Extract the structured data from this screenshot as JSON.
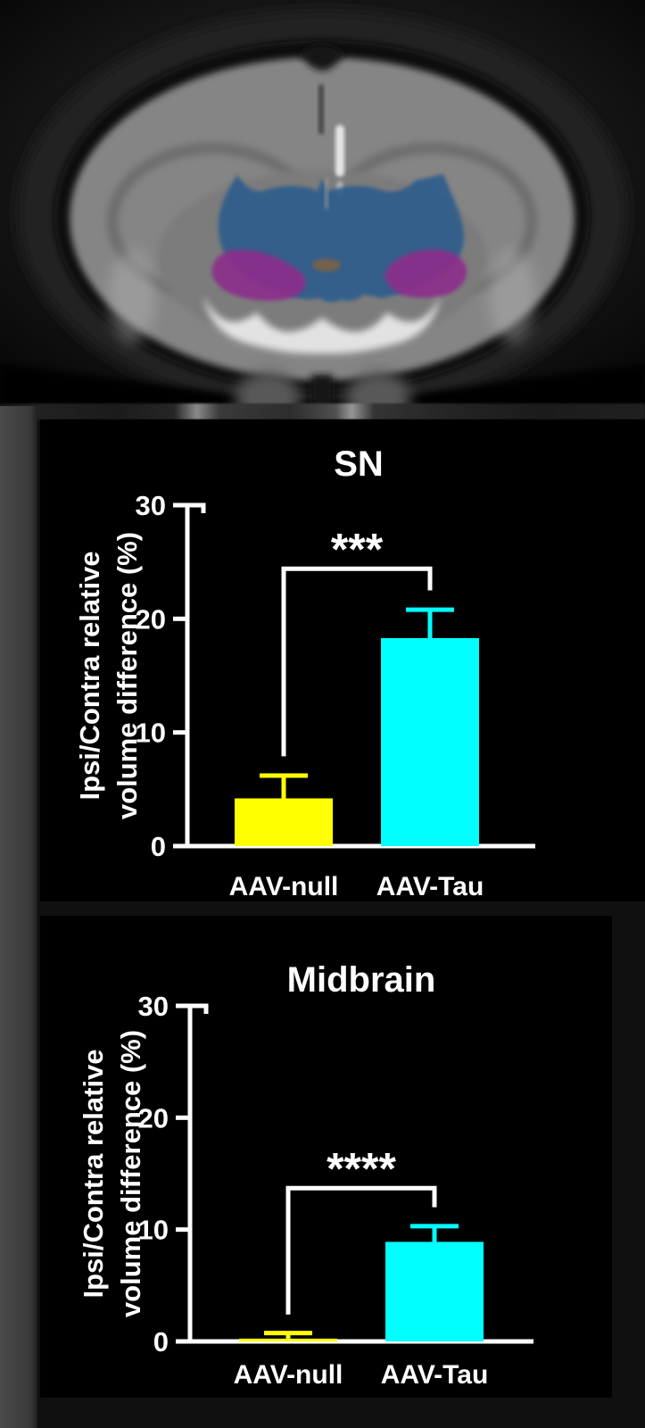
{
  "page": {
    "background": "#101010"
  },
  "mri": {
    "overlays": [
      {
        "name": "midbrain",
        "color": "#2F5D8C"
      },
      {
        "name": "substantia-nigra-left",
        "color": "#8C2F8C"
      },
      {
        "name": "substantia-nigra-right",
        "color": "#8C2F8C"
      },
      {
        "name": "central-structure-spot",
        "color": "#7D6244"
      }
    ]
  },
  "chart_data": [
    {
      "type": "bar",
      "title": "SN",
      "categories": [
        "AAV-null",
        "AAV-Tau"
      ],
      "values": [
        4.2,
        18.3
      ],
      "errors": [
        2.0,
        2.5
      ],
      "bar_colors": [
        "#FFFF00",
        "#00FFFF"
      ],
      "axis_color": "#FFFFFF",
      "ylabel_lines": [
        "Ipsi/Contra relative",
        "volume difference (%)"
      ],
      "ylim": [
        0,
        30
      ],
      "yticks": [
        0,
        10,
        20,
        30
      ],
      "grid": false,
      "legend": "none",
      "significance": {
        "label": "***",
        "bracket_y": 24.4,
        "left_drop_to": 7.9,
        "right_drop_to": 22.5
      }
    },
    {
      "type": "bar",
      "title": "Midbrain",
      "categories": [
        "AAV-null",
        "AAV-Tau"
      ],
      "values": [
        0.25,
        8.9
      ],
      "errors": [
        0.5,
        1.4
      ],
      "bar_colors": [
        "#FFFF00",
        "#00FFFF"
      ],
      "axis_color": "#FFFFFF",
      "ylabel_lines": [
        "Ipsi/Contra relative",
        "volume difference (%)"
      ],
      "ylim": [
        0,
        30
      ],
      "yticks": [
        0,
        10,
        20,
        30
      ],
      "grid": false,
      "legend": "none",
      "significance": {
        "label": "****",
        "bracket_y": 13.7,
        "left_drop_to": 2.4,
        "right_drop_to": 12.0
      }
    }
  ]
}
